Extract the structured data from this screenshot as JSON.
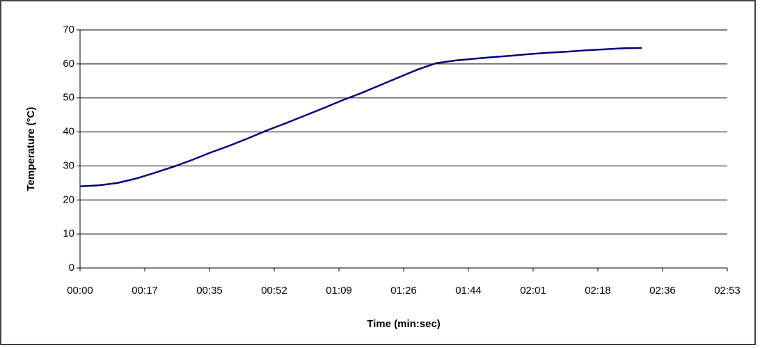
{
  "chart_data": {
    "type": "line",
    "x_label": "Time (min:sec)",
    "y_label": "Temperature (°C)",
    "x": [
      0,
      5,
      10,
      15,
      20,
      25,
      30,
      35,
      40,
      45,
      50,
      55,
      60,
      65,
      70,
      75,
      80,
      85,
      90,
      95,
      100,
      105,
      110,
      115,
      120,
      125,
      130,
      135,
      140,
      145,
      150
    ],
    "series": [
      {
        "color": "#000080",
        "values": [
          24,
          24.3,
          25,
          26.3,
          28,
          29.8,
          31.8,
          34,
          36,
          38.2,
          40.5,
          42.6,
          44.8,
          47,
          49.3,
          51.4,
          53.7,
          56,
          58.3,
          60.2,
          61,
          61.5,
          62,
          62.4,
          62.9,
          63.3,
          63.6,
          64,
          64.3,
          64.6,
          64.7
        ]
      }
    ],
    "xlim": [
      0,
      172.8
    ],
    "xticks": [
      {
        "value": 0,
        "label": "00:00"
      },
      {
        "value": 17.28,
        "label": "00:17"
      },
      {
        "value": 34.56,
        "label": "00:35"
      },
      {
        "value": 51.84,
        "label": "00:52"
      },
      {
        "value": 69.12,
        "label": "01:09"
      },
      {
        "value": 86.4,
        "label": "01:26"
      },
      {
        "value": 103.68,
        "label": "01:44"
      },
      {
        "value": 120.96,
        "label": "02:01"
      },
      {
        "value": 138.24,
        "label": "02:18"
      },
      {
        "value": 155.52,
        "label": "02:36"
      },
      {
        "value": 172.8,
        "label": "02:53"
      }
    ],
    "ylim": [
      0,
      70
    ],
    "yticks": [
      0,
      10,
      20,
      30,
      40,
      50,
      60,
      70
    ],
    "grid": true
  }
}
